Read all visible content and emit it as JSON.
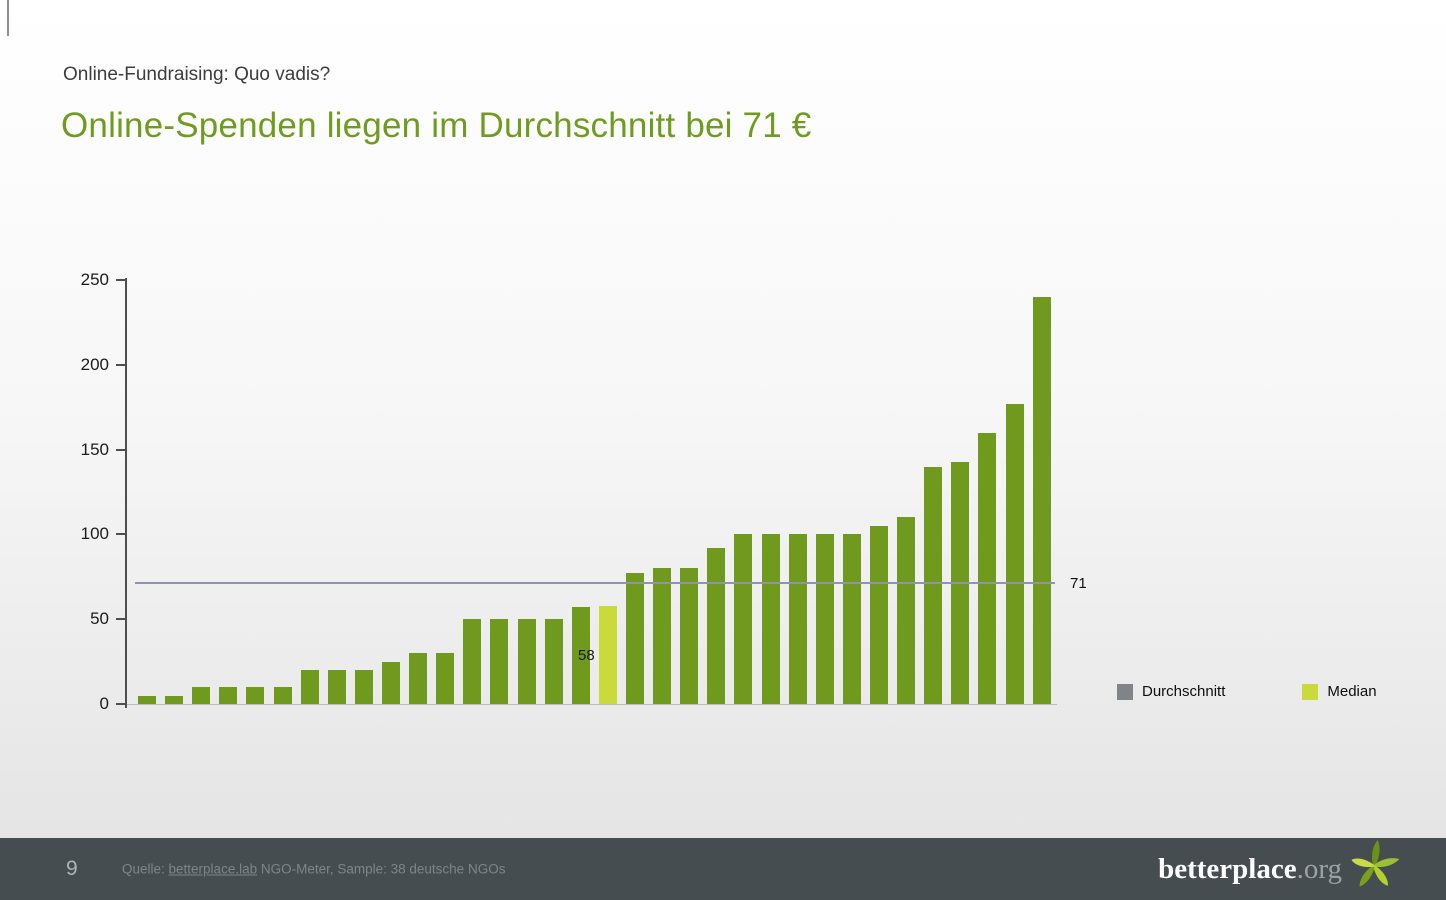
{
  "header": {
    "kicker": "Online-Fundraising: Quo vadis?",
    "title": "Online-Spenden liegen im Durchschnitt bei 71 €"
  },
  "chart_data": {
    "type": "bar",
    "title": "Online-Spenden liegen im Durchschnitt bei 71 €",
    "xlabel": "",
    "ylabel": "",
    "ylim": [
      0,
      250
    ],
    "yticks": [
      0,
      50,
      100,
      150,
      200,
      250
    ],
    "grid": false,
    "values": [
      5,
      5,
      10,
      10,
      10,
      10,
      20,
      20,
      20,
      25,
      30,
      30,
      50,
      50,
      50,
      50,
      57,
      58,
      77,
      80,
      80,
      92,
      100,
      100,
      100,
      100,
      100,
      105,
      110,
      140,
      143,
      160,
      177,
      240
    ],
    "median_index": 17,
    "median_value": 58,
    "median_label": "58",
    "average_value": 71,
    "average_label": "71",
    "colors": {
      "bar": "#6f9a1d",
      "median_bar": "#cada3a",
      "average_line": "#9092ae"
    },
    "legend": [
      {
        "label": "Durchschnitt",
        "color": "#7f8487"
      },
      {
        "label": "Median",
        "color": "#cada3a"
      }
    ],
    "legend_position": "bottom-right"
  },
  "footer": {
    "page_number": "9",
    "source_prefix": "Quelle: ",
    "source_link": "betterplace.lab",
    "source_suffix": " NGO-Meter, Sample: 38 deutsche NGOs",
    "logo_main": "betterplace",
    "logo_suffix": ".org"
  }
}
